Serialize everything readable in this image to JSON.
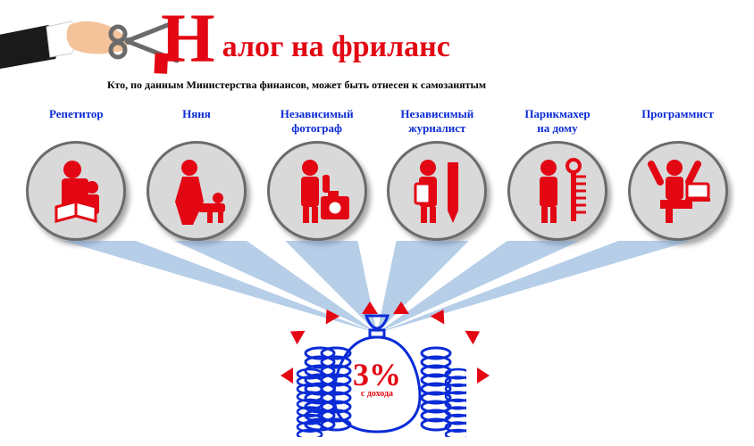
{
  "colors": {
    "red": "#e30613",
    "blue": "#0a2bd6",
    "circle_bg": "#d9d9d9",
    "circle_border": "#6b6b6b",
    "beam": "#7aa5d6",
    "black": "#000000",
    "skin": "#f4c39a",
    "cuff": "#ffffff",
    "sleeve": "#1a1a1a"
  },
  "title": {
    "big_letter": "Н",
    "rest": "алог на фриланс",
    "fontsize_big": 78,
    "fontsize_rest": 34
  },
  "subtitle": "Кто, по данным Министерства финансов, может быть отнесен к самозанятым",
  "categories": [
    {
      "label": "Репетитор",
      "icon": "tutor"
    },
    {
      "label": "Няня",
      "icon": "nanny"
    },
    {
      "label": "Независимый\nфотограф",
      "icon": "photographer"
    },
    {
      "label": "Независимый\nжурналист",
      "icon": "journalist"
    },
    {
      "label": "Парикмахер\nна дому",
      "icon": "hairdresser"
    },
    {
      "label": "Программист",
      "icon": "programmer"
    }
  ],
  "tax": {
    "percent": "3%",
    "sub": "с дохода"
  },
  "layout": {
    "circle_diameter": 112,
    "circle_border_width": 3,
    "beam_opacity": 0.55
  }
}
